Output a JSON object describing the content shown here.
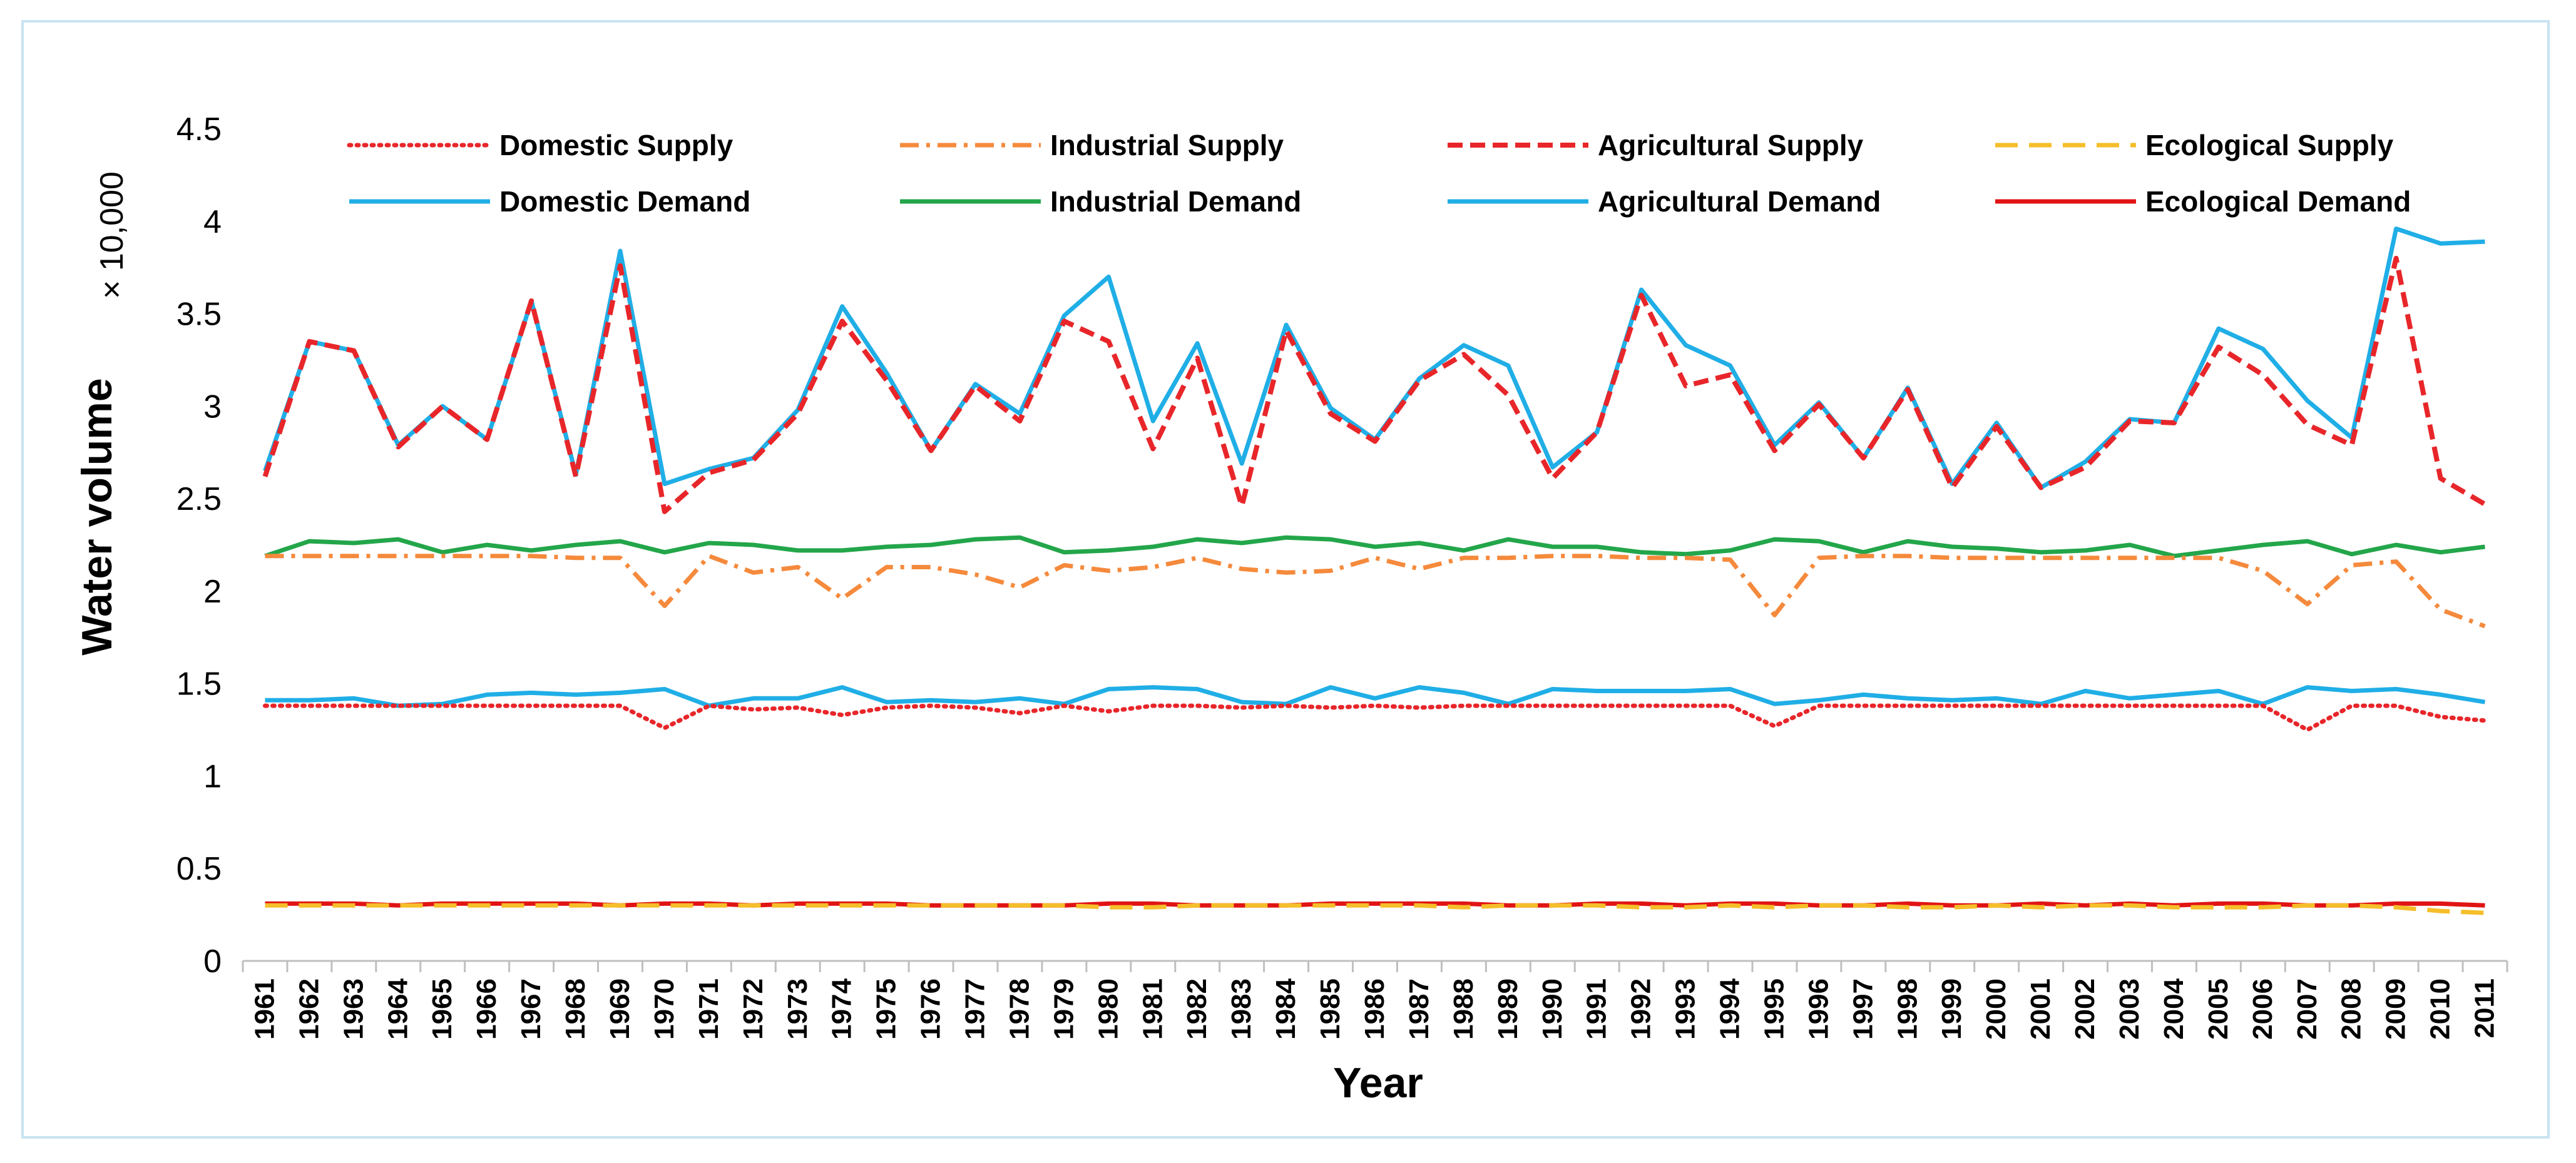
{
  "chart_data": {
    "type": "line",
    "title": "",
    "xlabel": "Year",
    "ylabel": "Water volume",
    "y_multiplier": "× 10,000",
    "ylim": [
      0,
      4.5
    ],
    "yticks": [
      "0",
      "0.5",
      "1",
      "1.5",
      "2",
      "2.5",
      "3",
      "3.5",
      "4",
      "4.5"
    ],
    "grid": false,
    "legend_position": "top",
    "x": [
      "1961",
      "1962",
      "1963",
      "1964",
      "1965",
      "1966",
      "1967",
      "1968",
      "1969",
      "1970",
      "1971",
      "1972",
      "1973",
      "1974",
      "1975",
      "1976",
      "1977",
      "1978",
      "1979",
      "1980",
      "1981",
      "1982",
      "1983",
      "1984",
      "1985",
      "1986",
      "1987",
      "1988",
      "1989",
      "1990",
      "1991",
      "1992",
      "1993",
      "1994",
      "1995",
      "1996",
      "1997",
      "1998",
      "1999",
      "2000",
      "2001",
      "2002",
      "2003",
      "2004",
      "2005",
      "2006",
      "2007",
      "2008",
      "2009",
      "2010",
      "2011"
    ],
    "series": [
      {
        "name": "Domestic Supply",
        "color": "#e8262a",
        "style": "dotted",
        "values": [
          1.38,
          1.38,
          1.38,
          1.38,
          1.38,
          1.38,
          1.38,
          1.38,
          1.38,
          1.26,
          1.38,
          1.36,
          1.37,
          1.33,
          1.37,
          1.38,
          1.37,
          1.34,
          1.38,
          1.35,
          1.38,
          1.38,
          1.37,
          1.38,
          1.37,
          1.38,
          1.37,
          1.38,
          1.38,
          1.38,
          1.38,
          1.38,
          1.38,
          1.38,
          1.27,
          1.38,
          1.38,
          1.38,
          1.38,
          1.38,
          1.38,
          1.38,
          1.38,
          1.38,
          1.38,
          1.38,
          1.25,
          1.38,
          1.38,
          1.32,
          1.3
        ]
      },
      {
        "name": "Industrial Supply",
        "color": "#f58a3c",
        "style": "dashdot",
        "values": [
          2.19,
          2.19,
          2.19,
          2.19,
          2.19,
          2.19,
          2.19,
          2.18,
          2.18,
          1.92,
          2.19,
          2.1,
          2.13,
          1.96,
          2.13,
          2.13,
          2.09,
          2.02,
          2.14,
          2.11,
          2.13,
          2.18,
          2.12,
          2.1,
          2.11,
          2.18,
          2.12,
          2.18,
          2.18,
          2.19,
          2.19,
          2.18,
          2.18,
          2.17,
          1.87,
          2.18,
          2.19,
          2.19,
          2.18,
          2.18,
          2.18,
          2.18,
          2.18,
          2.18,
          2.18,
          2.11,
          1.93,
          2.14,
          2.16,
          1.9,
          1.81
        ]
      },
      {
        "name": "Agricultural Supply",
        "color": "#e8262a",
        "style": "dashed",
        "values": [
          2.62,
          3.35,
          3.3,
          2.78,
          3.0,
          2.82,
          3.57,
          2.62,
          3.76,
          2.43,
          2.64,
          2.71,
          2.96,
          3.46,
          3.14,
          2.76,
          3.11,
          2.92,
          3.46,
          3.35,
          2.77,
          3.26,
          2.46,
          3.41,
          2.96,
          2.81,
          3.14,
          3.28,
          3.06,
          2.61,
          2.86,
          3.6,
          3.11,
          3.17,
          2.76,
          3.01,
          2.72,
          3.09,
          2.56,
          2.89,
          2.56,
          2.67,
          2.92,
          2.91,
          3.32,
          3.17,
          2.9,
          2.79,
          3.8,
          2.61,
          2.47
        ]
      },
      {
        "name": "Ecological Supply",
        "color": "#f5be2a",
        "style": "longdash",
        "values": [
          0.3,
          0.3,
          0.3,
          0.3,
          0.3,
          0.3,
          0.3,
          0.3,
          0.3,
          0.3,
          0.3,
          0.3,
          0.3,
          0.3,
          0.3,
          0.3,
          0.3,
          0.3,
          0.3,
          0.29,
          0.29,
          0.3,
          0.3,
          0.3,
          0.3,
          0.3,
          0.3,
          0.29,
          0.3,
          0.3,
          0.3,
          0.29,
          0.29,
          0.3,
          0.29,
          0.3,
          0.3,
          0.29,
          0.29,
          0.3,
          0.29,
          0.3,
          0.3,
          0.29,
          0.29,
          0.29,
          0.3,
          0.3,
          0.29,
          0.27,
          0.26
        ]
      },
      {
        "name": "Domestic Demand",
        "color": "#20aee6",
        "style": "solid",
        "values": [
          1.41,
          1.41,
          1.42,
          1.38,
          1.39,
          1.44,
          1.45,
          1.44,
          1.45,
          1.47,
          1.38,
          1.42,
          1.42,
          1.48,
          1.4,
          1.41,
          1.4,
          1.42,
          1.39,
          1.47,
          1.48,
          1.47,
          1.4,
          1.39,
          1.48,
          1.42,
          1.48,
          1.45,
          1.39,
          1.47,
          1.46,
          1.46,
          1.46,
          1.47,
          1.39,
          1.41,
          1.44,
          1.42,
          1.41,
          1.42,
          1.39,
          1.46,
          1.42,
          1.44,
          1.46,
          1.39,
          1.48,
          1.46,
          1.47,
          1.44,
          1.4
        ]
      },
      {
        "name": "Industrial Demand",
        "color": "#23a64a",
        "style": "solid",
        "values": [
          2.19,
          2.27,
          2.26,
          2.28,
          2.21,
          2.25,
          2.22,
          2.25,
          2.27,
          2.21,
          2.26,
          2.25,
          2.22,
          2.22,
          2.24,
          2.25,
          2.28,
          2.29,
          2.21,
          2.22,
          2.24,
          2.28,
          2.26,
          2.29,
          2.28,
          2.24,
          2.26,
          2.22,
          2.28,
          2.24,
          2.24,
          2.21,
          2.2,
          2.22,
          2.28,
          2.27,
          2.21,
          2.27,
          2.24,
          2.23,
          2.21,
          2.22,
          2.25,
          2.19,
          2.22,
          2.25,
          2.27,
          2.2,
          2.25,
          2.21,
          2.24
        ]
      },
      {
        "name": "Agricultural Demand",
        "color": "#20aee6",
        "style": "solid",
        "values": [
          2.65,
          3.35,
          3.3,
          2.79,
          3.0,
          2.82,
          3.57,
          2.63,
          3.84,
          2.58,
          2.66,
          2.72,
          2.98,
          3.54,
          3.18,
          2.76,
          3.12,
          2.96,
          3.49,
          3.7,
          2.92,
          3.34,
          2.69,
          3.44,
          2.99,
          2.82,
          3.15,
          3.33,
          3.22,
          2.67,
          2.86,
          3.63,
          3.33,
          3.22,
          2.79,
          3.02,
          2.72,
          3.1,
          2.58,
          2.91,
          2.56,
          2.7,
          2.93,
          2.91,
          3.42,
          3.31,
          3.03,
          2.83,
          3.96,
          3.88,
          3.89
        ]
      },
      {
        "name": "Ecological Demand",
        "color": "#e11414",
        "style": "solid",
        "values": [
          0.31,
          0.31,
          0.31,
          0.3,
          0.31,
          0.31,
          0.31,
          0.31,
          0.3,
          0.31,
          0.31,
          0.3,
          0.31,
          0.31,
          0.31,
          0.3,
          0.3,
          0.3,
          0.3,
          0.31,
          0.31,
          0.3,
          0.3,
          0.3,
          0.31,
          0.31,
          0.31,
          0.31,
          0.3,
          0.3,
          0.31,
          0.31,
          0.3,
          0.31,
          0.31,
          0.3,
          0.3,
          0.31,
          0.3,
          0.3,
          0.31,
          0.3,
          0.31,
          0.3,
          0.31,
          0.31,
          0.3,
          0.3,
          0.31,
          0.31,
          0.3
        ]
      }
    ]
  }
}
